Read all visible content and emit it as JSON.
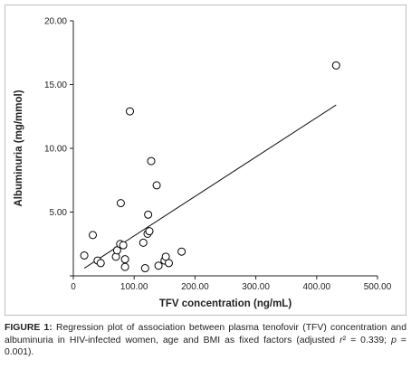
{
  "chart_data": {
    "type": "scatter",
    "xlabel": "TFV concentration (ng/mL)",
    "ylabel": "Albuminuria (mg/mmol)",
    "xlim": [
      0,
      500
    ],
    "ylim": [
      0,
      20
    ],
    "x_ticks": [
      "0",
      "100.00",
      "200.00",
      "300.00",
      "400.00",
      "500.00"
    ],
    "y_ticks": [
      "",
      "5.00",
      "10.00",
      "15.00",
      "20.00"
    ],
    "grid": false,
    "regression_line": {
      "x": [
        18,
        432
      ],
      "y": [
        0.6,
        13.4
      ]
    },
    "points": [
      {
        "x": 18,
        "y": 1.6
      },
      {
        "x": 32,
        "y": 3.2
      },
      {
        "x": 40,
        "y": 1.2
      },
      {
        "x": 45,
        "y": 1.0
      },
      {
        "x": 70,
        "y": 1.5
      },
      {
        "x": 72,
        "y": 2.0
      },
      {
        "x": 77,
        "y": 2.5
      },
      {
        "x": 78,
        "y": 5.7
      },
      {
        "x": 82,
        "y": 2.4
      },
      {
        "x": 85,
        "y": 0.7
      },
      {
        "x": 85,
        "y": 1.3
      },
      {
        "x": 93,
        "y": 12.9
      },
      {
        "x": 115,
        "y": 2.6
      },
      {
        "x": 118,
        "y": 0.6
      },
      {
        "x": 122,
        "y": 3.3
      },
      {
        "x": 123,
        "y": 4.8
      },
      {
        "x": 125,
        "y": 3.5
      },
      {
        "x": 128,
        "y": 9.0
      },
      {
        "x": 137,
        "y": 7.1
      },
      {
        "x": 140,
        "y": 0.8
      },
      {
        "x": 150,
        "y": 1.2
      },
      {
        "x": 152,
        "y": 1.5
      },
      {
        "x": 157,
        "y": 1.0
      },
      {
        "x": 178,
        "y": 1.9
      },
      {
        "x": 432,
        "y": 16.5
      }
    ],
    "marker": "open-circle",
    "color": "#000000"
  },
  "caption": {
    "label": "FIGURE 1:",
    "text_before_r": " Regression plot of association between plasma tenofovir (TFV) concentration and albuminuria in HIV-infected women, age and BMI as fixed factors (adjusted ",
    "r_symbol": "r",
    "text_after_r": "² = 0.339; ",
    "p_symbol": "p",
    "text_end": " = 0.001)."
  }
}
